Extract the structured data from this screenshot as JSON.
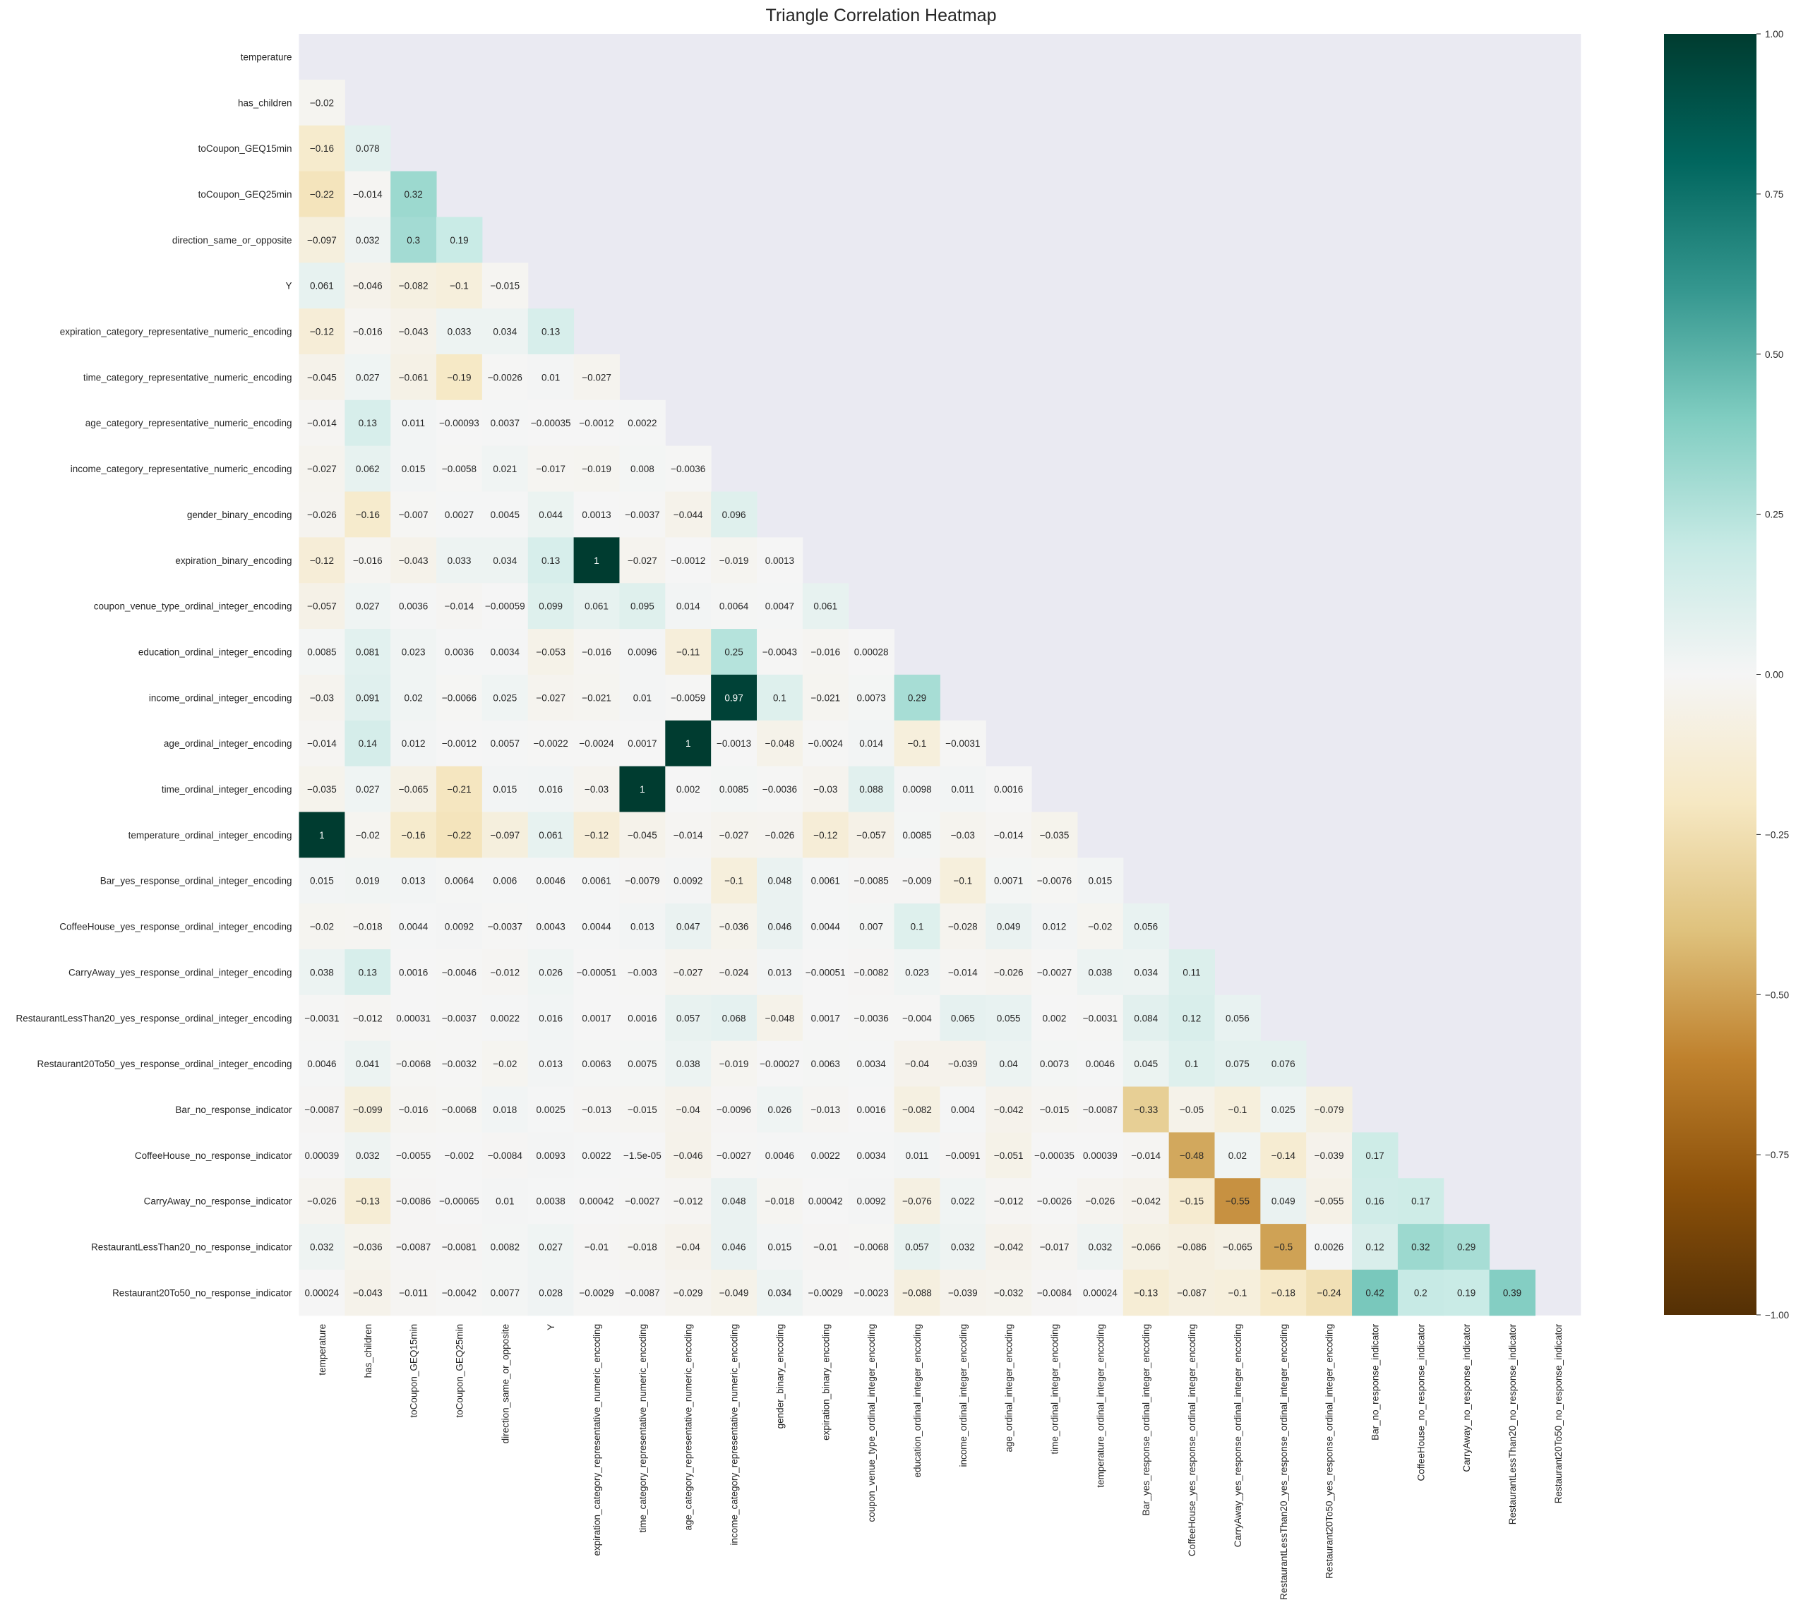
{
  "chart_data": {
    "type": "heatmap",
    "title": "Triangle Correlation Heatmap",
    "mask": "upper-triangle-including-diagonal",
    "colormap": "BrBG",
    "background_color": "#eaeaf2",
    "vmin": -1.0,
    "vmax": 1.0,
    "colorbar_ticks": [
      "1.00",
      "0.75",
      "0.50",
      "0.25",
      "0.00",
      "−0.25",
      "−0.50",
      "−0.75",
      "−1.00"
    ],
    "colorbar_tick_values": [
      1.0,
      0.75,
      0.5,
      0.25,
      0.0,
      -0.25,
      -0.5,
      -0.75,
      -1.0
    ],
    "labels": [
      "temperature",
      "has_children",
      "toCoupon_GEQ15min",
      "toCoupon_GEQ25min",
      "direction_same_or_opposite",
      "Y",
      "expiration_category_representative_numeric_encoding",
      "time_category_representative_numeric_encoding",
      "age_category_representative_numeric_encoding",
      "income_category_representative_numeric_encoding",
      "gender_binary_encoding",
      "expiration_binary_encoding",
      "coupon_venue_type_ordinal_integer_encoding",
      "education_ordinal_integer_encoding",
      "income_ordinal_integer_encoding",
      "age_ordinal_integer_encoding",
      "time_ordinal_integer_encoding",
      "temperature_ordinal_integer_encoding",
      "Bar_yes_response_ordinal_integer_encoding",
      "CoffeeHouse_yes_response_ordinal_integer_encoding",
      "CarryAway_yes_response_ordinal_integer_encoding",
      "RestaurantLessThan20_yes_response_ordinal_integer_encoding",
      "Restaurant20To50_yes_response_ordinal_integer_encoding",
      "Bar_no_response_indicator",
      "CoffeeHouse_no_response_indicator",
      "CarryAway_no_response_indicator",
      "RestaurantLessThan20_no_response_indicator",
      "Restaurant20To50_no_response_indicator"
    ],
    "values": [
      [],
      [
        "-0.02"
      ],
      [
        "-0.16",
        "0.078"
      ],
      [
        "-0.22",
        "-0.014",
        "0.32"
      ],
      [
        "-0.097",
        "0.032",
        "0.3",
        "0.19"
      ],
      [
        "0.061",
        "-0.046",
        "-0.082",
        "-0.1",
        "-0.015"
      ],
      [
        "-0.12",
        "-0.016",
        "-0.043",
        "0.033",
        "0.034",
        "0.13"
      ],
      [
        "-0.045",
        "0.027",
        "-0.061",
        "-0.19",
        "-0.0026",
        "0.01",
        "-0.027"
      ],
      [
        "-0.014",
        "0.13",
        "0.011",
        "-0.00093",
        "0.0037",
        "-0.00035",
        "-0.0012",
        "0.0022"
      ],
      [
        "-0.027",
        "0.062",
        "0.015",
        "-0.0058",
        "0.021",
        "-0.017",
        "-0.019",
        "0.008",
        "-0.0036"
      ],
      [
        "-0.026",
        "-0.16",
        "-0.007",
        "0.0027",
        "0.0045",
        "0.044",
        "0.0013",
        "-0.0037",
        "-0.044",
        "0.096"
      ],
      [
        "-0.12",
        "-0.016",
        "-0.043",
        "0.033",
        "0.034",
        "0.13",
        "1",
        "-0.027",
        "-0.0012",
        "-0.019",
        "0.0013"
      ],
      [
        "-0.057",
        "0.027",
        "0.0036",
        "-0.014",
        "-0.00059",
        "0.099",
        "0.061",
        "0.095",
        "0.014",
        "0.0064",
        "0.0047",
        "0.061"
      ],
      [
        "0.0085",
        "0.081",
        "0.023",
        "0.0036",
        "0.0034",
        "-0.053",
        "-0.016",
        "0.0096",
        "-0.11",
        "0.25",
        "-0.0043",
        "-0.016",
        "0.00028"
      ],
      [
        "-0.03",
        "0.091",
        "0.02",
        "-0.0066",
        "0.025",
        "-0.027",
        "-0.021",
        "0.01",
        "-0.0059",
        "0.97",
        "0.1",
        "-0.021",
        "0.0073",
        "0.29"
      ],
      [
        "-0.014",
        "0.14",
        "0.012",
        "-0.0012",
        "0.0057",
        "-0.0022",
        "-0.0024",
        "0.0017",
        "1",
        "-0.0013",
        "-0.048",
        "-0.0024",
        "0.014",
        "-0.1",
        "-0.0031"
      ],
      [
        "-0.035",
        "0.027",
        "-0.065",
        "-0.21",
        "0.015",
        "0.016",
        "-0.03",
        "1",
        "0.002",
        "0.0085",
        "-0.0036",
        "-0.03",
        "0.088",
        "0.0098",
        "0.011",
        "0.0016"
      ],
      [
        "1",
        "-0.02",
        "-0.16",
        "-0.22",
        "-0.097",
        "0.061",
        "-0.12",
        "-0.045",
        "-0.014",
        "-0.027",
        "-0.026",
        "-0.12",
        "-0.057",
        "0.0085",
        "-0.03",
        "-0.014",
        "-0.035"
      ],
      [
        "0.015",
        "0.019",
        "0.013",
        "0.0064",
        "0.006",
        "0.0046",
        "0.0061",
        "-0.0079",
        "0.0092",
        "-0.1",
        "0.048",
        "0.0061",
        "-0.0085",
        "-0.009",
        "-0.1",
        "0.0071",
        "-0.0076",
        "0.015"
      ],
      [
        "-0.02",
        "-0.018",
        "0.0044",
        "0.0092",
        "-0.0037",
        "0.0043",
        "0.0044",
        "0.013",
        "0.047",
        "-0.036",
        "0.046",
        "0.0044",
        "0.007",
        "0.1",
        "-0.028",
        "0.049",
        "0.012",
        "-0.02",
        "0.056"
      ],
      [
        "0.038",
        "0.13",
        "0.0016",
        "-0.0046",
        "-0.012",
        "0.026",
        "-0.00051",
        "-0.003",
        "-0.027",
        "-0.024",
        "0.013",
        "-0.00051",
        "-0.0082",
        "0.023",
        "-0.014",
        "-0.026",
        "-0.0027",
        "0.038",
        "0.034",
        "0.11"
      ],
      [
        "-0.0031",
        "-0.012",
        "0.00031",
        "-0.0037",
        "0.0022",
        "0.016",
        "0.0017",
        "0.0016",
        "0.057",
        "0.068",
        "-0.048",
        "0.0017",
        "-0.0036",
        "-0.004",
        "0.065",
        "0.055",
        "0.002",
        "-0.0031",
        "0.084",
        "0.12",
        "0.056"
      ],
      [
        "0.0046",
        "0.041",
        "-0.0068",
        "-0.0032",
        "-0.02",
        "0.013",
        "0.0063",
        "0.0075",
        "0.038",
        "-0.019",
        "-0.00027",
        "0.0063",
        "0.0034",
        "-0.04",
        "-0.039",
        "0.04",
        "0.0073",
        "0.0046",
        "0.045",
        "0.1",
        "0.075",
        "0.076"
      ],
      [
        "-0.0087",
        "-0.099",
        "-0.016",
        "-0.0068",
        "0.018",
        "0.0025",
        "-0.013",
        "-0.015",
        "-0.04",
        "-0.0096",
        "0.026",
        "-0.013",
        "0.0016",
        "-0.082",
        "0.004",
        "-0.042",
        "-0.015",
        "-0.0087",
        "-0.33",
        "-0.05",
        "-0.1",
        "0.025",
        "-0.079"
      ],
      [
        "0.00039",
        "0.032",
        "-0.0055",
        "-0.002",
        "-0.0084",
        "0.0093",
        "0.0022",
        "-1.5e-05",
        "-0.046",
        "-0.0027",
        "0.0046",
        "0.0022",
        "0.0034",
        "0.011",
        "-0.0091",
        "-0.051",
        "-0.00035",
        "0.00039",
        "-0.014",
        "-0.48",
        "0.02",
        "-0.14",
        "-0.039",
        "0.17"
      ],
      [
        "-0.026",
        "-0.13",
        "-0.0086",
        "-0.00065",
        "0.01",
        "0.0038",
        "0.00042",
        "-0.0027",
        "-0.012",
        "0.048",
        "-0.018",
        "0.00042",
        "0.0092",
        "-0.076",
        "0.022",
        "-0.012",
        "-0.0026",
        "-0.026",
        "-0.042",
        "-0.15",
        "-0.55",
        "0.049",
        "-0.055",
        "0.16",
        "0.17"
      ],
      [
        "0.032",
        "-0.036",
        "-0.0087",
        "-0.0081",
        "0.0082",
        "0.027",
        "-0.01",
        "-0.018",
        "-0.04",
        "0.046",
        "0.015",
        "-0.01",
        "-0.0068",
        "0.057",
        "0.032",
        "-0.042",
        "-0.017",
        "0.032",
        "-0.066",
        "-0.086",
        "-0.065",
        "-0.5",
        "0.0026",
        "0.12",
        "0.32",
        "0.29"
      ],
      [
        "0.00024",
        "-0.043",
        "-0.011",
        "-0.0042",
        "0.0077",
        "0.028",
        "-0.0029",
        "-0.0087",
        "-0.029",
        "-0.049",
        "0.034",
        "-0.0029",
        "-0.0023",
        "-0.088",
        "-0.039",
        "-0.032",
        "-0.0084",
        "0.00024",
        "-0.13",
        "-0.087",
        "-0.1",
        "-0.18",
        "-0.24",
        "0.42",
        "0.2",
        "0.19",
        "0.39"
      ]
    ]
  }
}
